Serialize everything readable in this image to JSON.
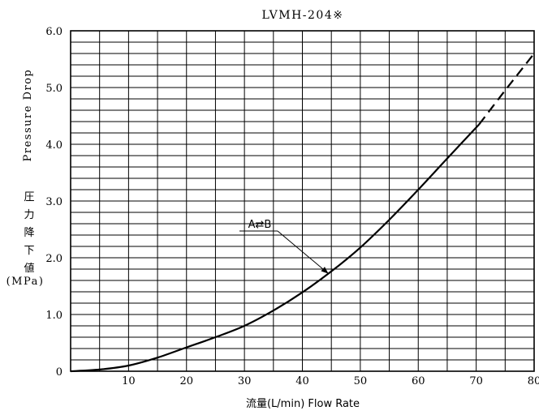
{
  "chart_data": {
    "type": "line",
    "title": "LVMH-204※",
    "xlabel": "流量(L/min)  Flow Rate",
    "ylabel_en": "Pressure Drop",
    "ylabel_jp": [
      "圧",
      "力",
      "降",
      "下",
      "値"
    ],
    "ylabel_unit": "(MPa)",
    "xlim": [
      0,
      80
    ],
    "ylim": [
      0,
      6
    ],
    "xticks": [
      10,
      20,
      30,
      40,
      50,
      60,
      70,
      80
    ],
    "xtick_labels": [
      "10",
      "20",
      "30",
      "40",
      "50",
      "60",
      "70",
      "80"
    ],
    "yticks": [
      0,
      1,
      2,
      3,
      4,
      5,
      6
    ],
    "ytick_labels": [
      "0",
      "1.0",
      "2.0",
      "3.0",
      "4.0",
      "5.0",
      "6.0"
    ],
    "grid": true,
    "series": [
      {
        "name": "A⇄B",
        "style": "solid",
        "x": [
          0,
          5,
          10,
          15,
          20,
          25,
          30,
          35,
          40,
          45,
          50,
          55,
          60,
          65,
          70.5
        ],
        "y": [
          0,
          0.03,
          0.1,
          0.24,
          0.42,
          0.6,
          0.8,
          1.07,
          1.39,
          1.76,
          2.18,
          2.67,
          3.2,
          3.75,
          4.35
        ]
      },
      {
        "name": "",
        "style": "dashed",
        "x": [
          70.5,
          75,
          80
        ],
        "y": [
          4.35,
          4.95,
          5.6
        ]
      }
    ],
    "annotation": {
      "text": "A⇄B",
      "x": 44.5,
      "y": 1.72
    },
    "colors": {
      "line": "#000000",
      "grid": "#000000",
      "background": "#ffffff"
    }
  }
}
